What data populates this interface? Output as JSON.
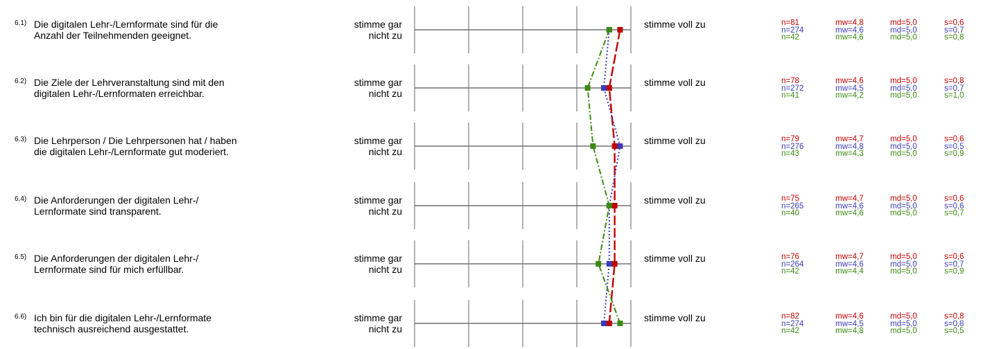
{
  "scale": {
    "low_label_line1": "stimme gar",
    "low_label_line2": "nicht zu",
    "high_label": "stimme voll zu"
  },
  "colors": {
    "series1": "#c00000",
    "series2": "#3a3ab8",
    "series3": "#3a8a10",
    "axis": "#555555"
  },
  "chart_data": {
    "type": "line",
    "x_range": [
      1,
      5
    ],
    "categories": [
      "6.1)",
      "6.2)",
      "6.3)",
      "6.4)",
      "6.5)",
      "6.6)"
    ],
    "items": [
      {
        "num": "6.1)",
        "line1": "Die digitalen Lehr-/Lernformate sind für die",
        "line2": "Anzahl der Teilnehmenden geeignet.",
        "stats": [
          {
            "n": "n=81",
            "mw": "mw=4,8",
            "md": "md=5,0",
            "s": "s=0,6"
          },
          {
            "n": "n=274",
            "mw": "mw=4,6",
            "md": "md=5,0",
            "s": "s=0,7"
          },
          {
            "n": "n=42",
            "mw": "mw=4,6",
            "md": "md=5,0",
            "s": "s=0,8"
          }
        ]
      },
      {
        "num": "6.2)",
        "line1": "Die Ziele der Lehrveranstaltung sind mit den",
        "line2": "digitalen Lehr-/Lernformaten erreichbar.",
        "stats": [
          {
            "n": "n=78",
            "mw": "mw=4,6",
            "md": "md=5,0",
            "s": "s=0,8"
          },
          {
            "n": "n=272",
            "mw": "mw=4,5",
            "md": "md=5,0",
            "s": "s=0,7"
          },
          {
            "n": "n=41",
            "mw": "mw=4,2",
            "md": "md=5,0",
            "s": "s=1,0"
          }
        ]
      },
      {
        "num": "6.3)",
        "line1": "Die Lehrperson / Die Lehrpersonen hat / haben",
        "line2": "die digitalen Lehr-/Lernformate gut moderiert.",
        "stats": [
          {
            "n": "n=79",
            "mw": "mw=4,7",
            "md": "md=5,0",
            "s": "s=0,6"
          },
          {
            "n": "n=276",
            "mw": "mw=4,8",
            "md": "md=5,0",
            "s": "s=0,5"
          },
          {
            "n": "n=43",
            "mw": "mw=4,3",
            "md": "md=5,0",
            "s": "s=0,9"
          }
        ]
      },
      {
        "num": "6.4)",
        "line1": "Die Anforderungen der digitalen Lehr-/",
        "line2": "Lernformate sind transparent.",
        "stats": [
          {
            "n": "n=75",
            "mw": "mw=4,7",
            "md": "md=5,0",
            "s": "s=0,6"
          },
          {
            "n": "n=265",
            "mw": "mw=4,6",
            "md": "md=5,0",
            "s": "s=0,6"
          },
          {
            "n": "n=40",
            "mw": "mw=4,6",
            "md": "md=5,0",
            "s": "s=0,7"
          }
        ]
      },
      {
        "num": "6.5)",
        "line1": "Die Anforderungen der digitalen Lehr-/",
        "line2": "Lernformate sind für mich erfüllbar.",
        "stats": [
          {
            "n": "n=76",
            "mw": "mw=4,7",
            "md": "md=5,0",
            "s": "s=0,6"
          },
          {
            "n": "n=264",
            "mw": "mw=4,6",
            "md": "md=5,0",
            "s": "s=0,7"
          },
          {
            "n": "n=42",
            "mw": "mw=4,4",
            "md": "md=5,0",
            "s": "s=0,9"
          }
        ]
      },
      {
        "num": "6.6)",
        "line1": "Ich bin für die digitalen Lehr-/Lernformate",
        "line2": "technisch ausreichend ausgestattet.",
        "stats": [
          {
            "n": "n=82",
            "mw": "mw=4,6",
            "md": "md=5,0",
            "s": "s=0,8"
          },
          {
            "n": "n=274",
            "mw": "mw=4,5",
            "md": "md=5,0",
            "s": "s=0,8"
          },
          {
            "n": "n=42",
            "mw": "mw=4,8",
            "md": "md=5,0",
            "s": "s=0,5"
          }
        ]
      }
    ],
    "series": [
      {
        "values": [
          4.8,
          4.6,
          4.7,
          4.7,
          4.7,
          4.6
        ],
        "color": "#c00000",
        "style": "dashed"
      },
      {
        "values": [
          4.6,
          4.5,
          4.8,
          4.6,
          4.6,
          4.5
        ],
        "color": "#3a3ab8",
        "style": "dotted"
      },
      {
        "values": [
          4.6,
          4.2,
          4.3,
          4.6,
          4.4,
          4.8
        ],
        "color": "#3a8a10",
        "style": "dashdot"
      }
    ]
  }
}
